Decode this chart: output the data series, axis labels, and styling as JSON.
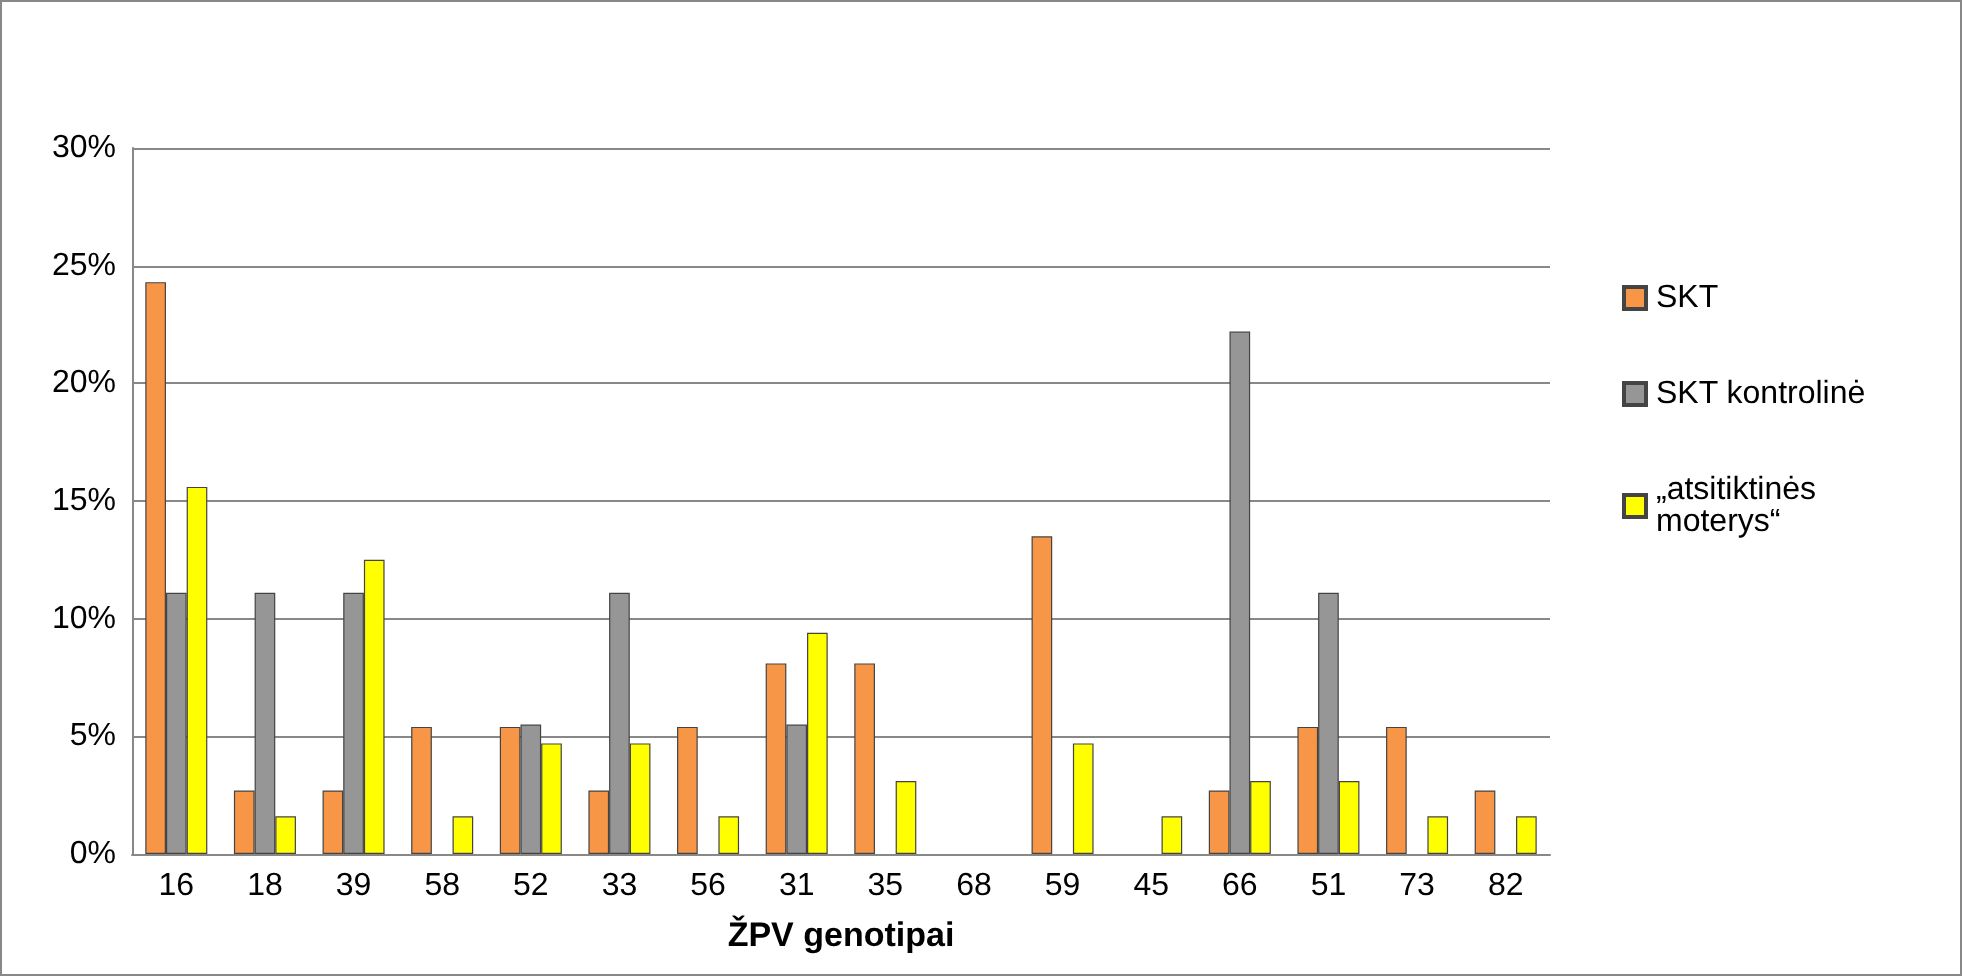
{
  "chart_data": {
    "type": "bar",
    "xlabel": "ŽPV genotipai",
    "categories": [
      "16",
      "18",
      "39",
      "58",
      "52",
      "33",
      "56",
      "31",
      "35",
      "68",
      "59",
      "45",
      "66",
      "51",
      "73",
      "82"
    ],
    "series": [
      {
        "name": "SKT",
        "color": "#f79646",
        "values": [
          24.3,
          2.7,
          2.7,
          5.4,
          5.4,
          2.7,
          5.4,
          8.1,
          8.1,
          0,
          13.5,
          0,
          2.7,
          5.4,
          5.4,
          2.7
        ]
      },
      {
        "name": "SKT kontrolinė",
        "color": "#969696",
        "values": [
          11.1,
          11.1,
          11.1,
          0,
          5.5,
          11.1,
          0,
          5.5,
          0,
          0,
          0,
          0,
          22.2,
          11.1,
          0,
          0
        ]
      },
      {
        "name": "„atsitiktinės moterys“",
        "color": "#ffff00",
        "values": [
          15.6,
          1.6,
          12.5,
          1.6,
          4.7,
          4.7,
          1.6,
          9.4,
          3.1,
          0,
          4.7,
          1.6,
          3.1,
          3.1,
          1.6,
          1.6
        ]
      }
    ],
    "ylim": [
      0,
      30
    ],
    "yticks": [
      {
        "value": 0,
        "label": "0%"
      },
      {
        "value": 5,
        "label": "5%"
      },
      {
        "value": 10,
        "label": "10%"
      },
      {
        "value": 15,
        "label": "15%"
      },
      {
        "value": 20,
        "label": "20%"
      },
      {
        "value": 25,
        "label": "25%"
      },
      {
        "value": 30,
        "label": "30%"
      }
    ],
    "grid": "y",
    "legend": "right"
  }
}
